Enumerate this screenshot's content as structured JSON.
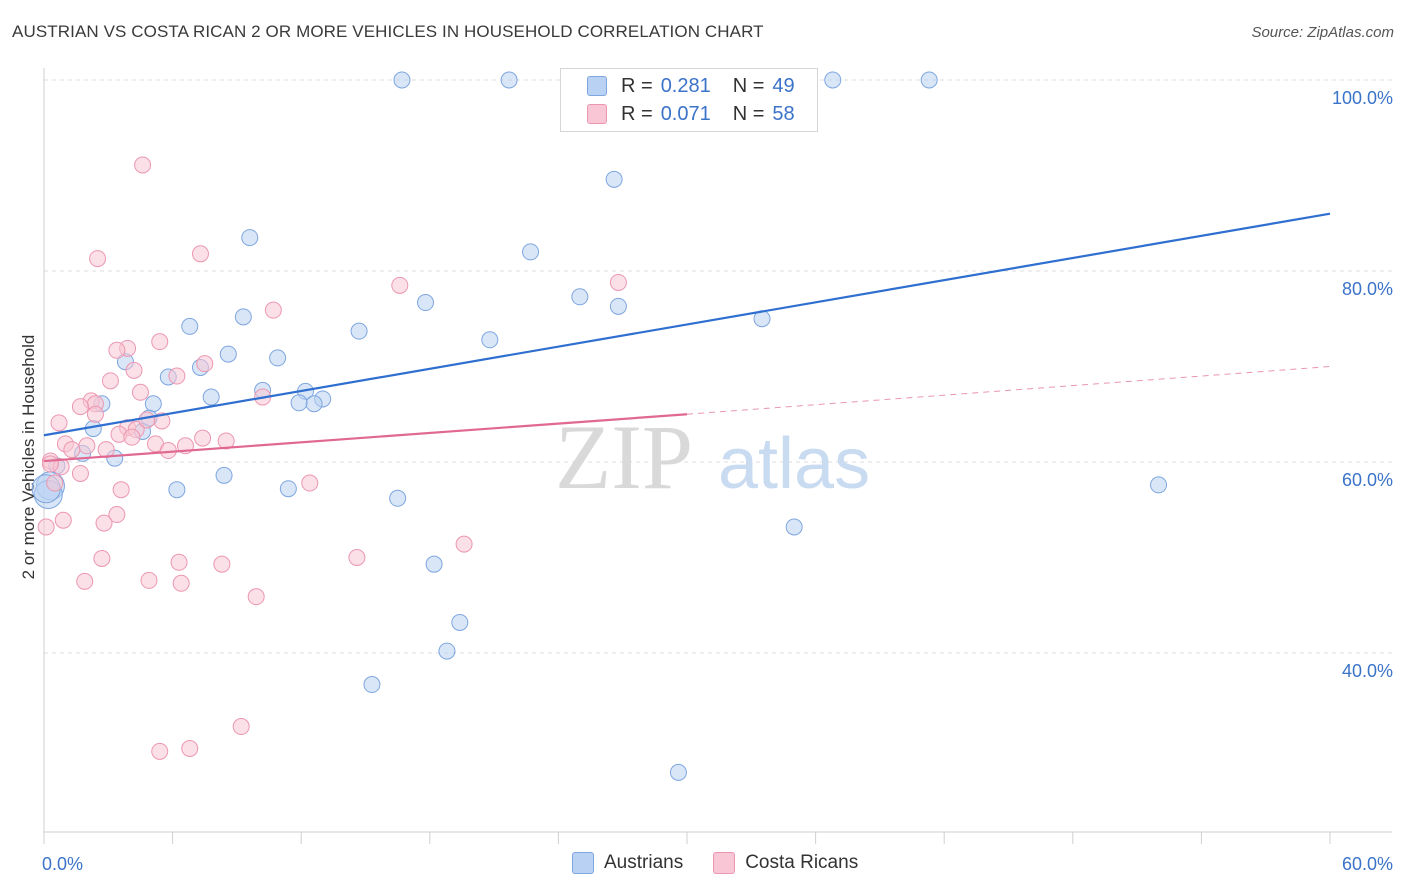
{
  "title": "AUSTRIAN VS COSTA RICAN 2 OR MORE VEHICLES IN HOUSEHOLD CORRELATION CHART",
  "source": "Source: ZipAtlas.com",
  "watermark": {
    "zip": "ZIP",
    "atlas": "atlas"
  },
  "colors": {
    "blue_fill": "#b9d1f3",
    "blue_stroke": "#7ea6df",
    "blue_line": "#2f6fd0",
    "pink_fill": "#f8c6d4",
    "pink_stroke": "#ec97b1",
    "pink_line": "#e06891",
    "axis_label": "#3b73c9",
    "grid": "#dcdcdc"
  },
  "legend": {
    "rows": [
      {
        "r_label": "R =",
        "r_value": "0.281",
        "n_label": "N =",
        "n_value": "49",
        "color": "#b9d1f3",
        "stroke": "#7ea6df"
      },
      {
        "r_label": "R =",
        "r_value": "0.071",
        "n_label": "N =",
        "n_value": "58",
        "color": "#f8c6d4",
        "stroke": "#ec97b1"
      }
    ]
  },
  "bottom_legend": [
    {
      "label": "Austrians",
      "color": "#b9d1f3",
      "stroke": "#7ea6df"
    },
    {
      "label": "Costa Ricans",
      "color": "#f8c6d4",
      "stroke": "#ec97b1"
    }
  ],
  "chart_data": {
    "type": "scatter",
    "title": "AUSTRIAN VS COSTA RICAN 2 OR MORE VEHICLES IN HOUSEHOLD CORRELATION CHART",
    "xlabel": "",
    "ylabel": "2 or more Vehicles in Household",
    "xlim": [
      0,
      60
    ],
    "ylim": [
      20,
      102
    ],
    "x_tick_labels": [
      {
        "value": 0,
        "label": "0.0%"
      },
      {
        "value": 60,
        "label": "60.0%"
      }
    ],
    "y_tick_labels": [
      {
        "value": 100,
        "label": "100.0%"
      },
      {
        "value": 80,
        "label": "80.0%"
      },
      {
        "value": 60,
        "label": "60.0%"
      },
      {
        "value": 40,
        "label": "40.0%"
      }
    ],
    "grid": true,
    "series": [
      {
        "name": "Austrians",
        "points": [
          [
            16.7,
            100.0
          ],
          [
            21.7,
            100.0
          ],
          [
            34.0,
            100.0
          ],
          [
            36.8,
            100.0
          ],
          [
            41.3,
            100.0
          ],
          [
            26.6,
            89.6
          ],
          [
            9.6,
            83.5
          ],
          [
            22.7,
            82.0
          ],
          [
            25.0,
            77.3
          ],
          [
            17.8,
            76.7
          ],
          [
            26.8,
            76.3
          ],
          [
            33.5,
            75.0
          ],
          [
            9.3,
            75.2
          ],
          [
            6.8,
            74.2
          ],
          [
            14.7,
            73.7
          ],
          [
            20.8,
            72.8
          ],
          [
            8.6,
            71.3
          ],
          [
            10.9,
            70.9
          ],
          [
            3.8,
            70.5
          ],
          [
            7.3,
            69.9
          ],
          [
            5.8,
            68.9
          ],
          [
            10.2,
            67.5
          ],
          [
            12.2,
            67.4
          ],
          [
            7.8,
            66.8
          ],
          [
            13.0,
            66.6
          ],
          [
            2.7,
            66.1
          ],
          [
            5.1,
            66.1
          ],
          [
            12.6,
            66.1
          ],
          [
            11.9,
            66.2
          ],
          [
            4.9,
            64.6
          ],
          [
            2.3,
            63.5
          ],
          [
            4.6,
            63.2
          ],
          [
            1.8,
            60.9
          ],
          [
            3.3,
            60.4
          ],
          [
            0.6,
            59.6
          ],
          [
            8.4,
            58.6
          ],
          [
            0.3,
            57.5
          ],
          [
            0.2,
            56.6
          ],
          [
            6.2,
            57.1
          ],
          [
            11.4,
            57.2
          ],
          [
            16.5,
            56.2
          ],
          [
            52.0,
            57.6
          ],
          [
            35.0,
            53.2
          ],
          [
            18.2,
            49.3
          ],
          [
            19.4,
            43.2
          ],
          [
            18.8,
            40.2
          ],
          [
            15.3,
            36.7
          ],
          [
            29.6,
            27.5
          ],
          [
            0.1,
            57.2
          ]
        ]
      },
      {
        "name": "Costa Ricans",
        "points": [
          [
            4.6,
            91.1
          ],
          [
            7.3,
            81.8
          ],
          [
            2.5,
            81.3
          ],
          [
            16.6,
            78.5
          ],
          [
            26.8,
            78.8
          ],
          [
            10.7,
            75.9
          ],
          [
            5.4,
            72.6
          ],
          [
            3.9,
            71.9
          ],
          [
            3.4,
            71.7
          ],
          [
            7.5,
            70.3
          ],
          [
            4.2,
            69.6
          ],
          [
            6.2,
            69.0
          ],
          [
            3.1,
            68.5
          ],
          [
            4.5,
            67.3
          ],
          [
            10.2,
            66.8
          ],
          [
            2.2,
            66.4
          ],
          [
            2.4,
            66.1
          ],
          [
            1.7,
            65.8
          ],
          [
            2.4,
            65.0
          ],
          [
            5.5,
            64.3
          ],
          [
            0.7,
            64.1
          ],
          [
            3.9,
            63.6
          ],
          [
            4.3,
            63.4
          ],
          [
            3.5,
            62.9
          ],
          [
            4.1,
            62.6
          ],
          [
            7.4,
            62.5
          ],
          [
            1.0,
            61.9
          ],
          [
            2.0,
            61.7
          ],
          [
            5.2,
            61.9
          ],
          [
            6.6,
            61.7
          ],
          [
            5.8,
            61.2
          ],
          [
            2.9,
            61.3
          ],
          [
            1.3,
            61.3
          ],
          [
            0.3,
            60.1
          ],
          [
            0.8,
            59.5
          ],
          [
            1.7,
            58.8
          ],
          [
            12.4,
            57.8
          ],
          [
            3.6,
            57.1
          ],
          [
            0.5,
            57.8
          ],
          [
            3.4,
            54.5
          ],
          [
            0.9,
            53.9
          ],
          [
            2.8,
            53.6
          ],
          [
            0.1,
            53.2
          ],
          [
            14.6,
            50.0
          ],
          [
            19.6,
            51.4
          ],
          [
            2.7,
            49.9
          ],
          [
            6.3,
            49.5
          ],
          [
            8.3,
            49.3
          ],
          [
            1.9,
            47.5
          ],
          [
            4.9,
            47.6
          ],
          [
            6.4,
            47.3
          ],
          [
            9.9,
            45.9
          ],
          [
            9.2,
            32.3
          ],
          [
            6.8,
            30.0
          ],
          [
            5.4,
            29.7
          ],
          [
            0.3,
            59.8
          ],
          [
            8.5,
            62.2
          ],
          [
            4.8,
            64.4
          ]
        ]
      }
    ],
    "trend_lines": [
      {
        "series": "Austrians",
        "x0": 0,
        "y0": 62.8,
        "x1": 60,
        "y1": 86.0,
        "style": "solid"
      },
      {
        "series": "Costa Ricans",
        "x0": 0,
        "y0": 60.1,
        "x1": 30,
        "y1": 65.0,
        "style": "solid"
      },
      {
        "series": "Costa Ricans",
        "x0": 30,
        "y0": 65.0,
        "x1": 60,
        "y1": 70.0,
        "style": "dashed"
      }
    ]
  }
}
